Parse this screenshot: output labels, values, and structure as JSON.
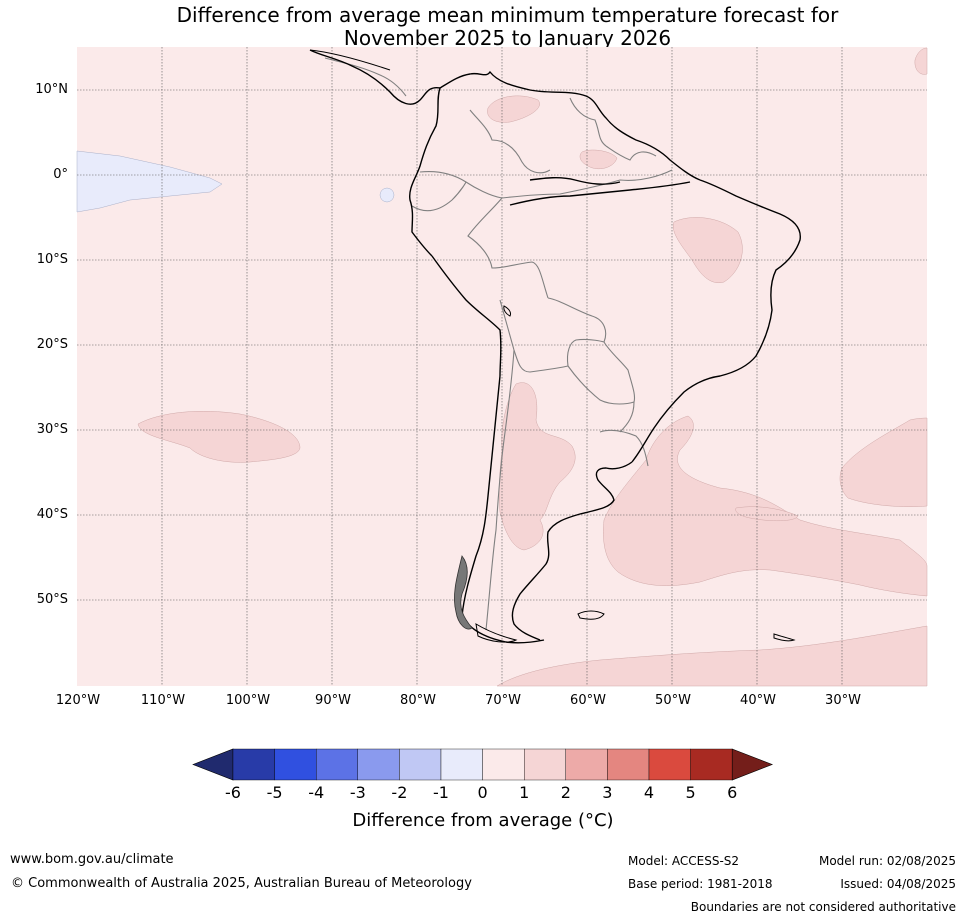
{
  "title_line1": "Difference from average mean minimum temperature forecast for",
  "title_line2": "November 2025 to January 2026",
  "lat_labels": [
    "10°N",
    "0°",
    "10°S",
    "20°S",
    "30°S",
    "40°S",
    "50°S"
  ],
  "lon_labels": [
    "120°W",
    "110°W",
    "100°W",
    "90°W",
    "80°W",
    "70°W",
    "60°W",
    "50°W",
    "40°W",
    "30°W"
  ],
  "colorbar": {
    "ticks": [
      "-6",
      "-5",
      "-4",
      "-3",
      "-2",
      "-1",
      "0",
      "1",
      "2",
      "3",
      "4",
      "5",
      "6"
    ],
    "colors": [
      "#202a6e",
      "#283ba8",
      "#3050e0",
      "#5c72e6",
      "#8a9aee",
      "#c0c8f4",
      "#e8ebfb",
      "#fbeaea",
      "#f5d5d5",
      "#edaaa8",
      "#e48680",
      "#da4a3e",
      "#a82a22",
      "#741e1a"
    ],
    "label": "Difference from average (°C)"
  },
  "footer": {
    "website": "www.bom.gov.au/climate",
    "copyright": "© Commonwealth of Australia 2025, Australian Bureau of Meteorology",
    "model": "Model: ACCESS-S2",
    "base_period": "Base period: 1981-2018",
    "model_run": "Model run: 02/08/2025",
    "issued": "Issued: 04/08/2025",
    "disclaimer": "Boundaries are not considered authoritative"
  }
}
